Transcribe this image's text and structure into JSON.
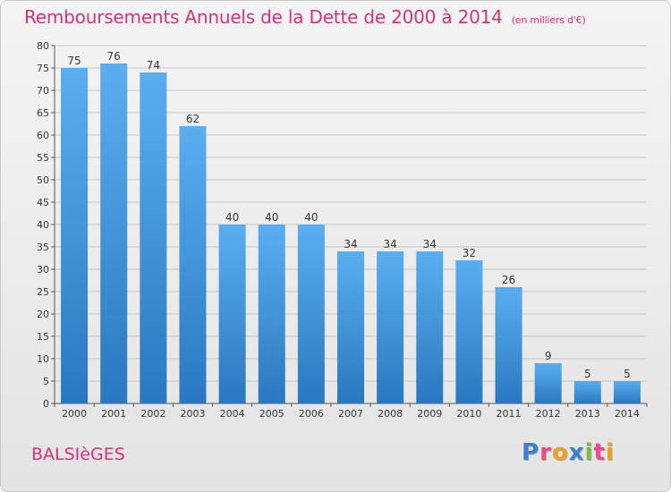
{
  "header": {
    "title": "Remboursements Annuels de la Dette de 2000 à 2014",
    "subtitle": "(en milliers d'€)"
  },
  "footer": {
    "commune": "BALSIèGES",
    "logo_letters": [
      {
        "ch": "P",
        "color": "#3a7fd0"
      },
      {
        "ch": "r",
        "color": "#e84a8a"
      },
      {
        "ch": "o",
        "color": "#f0a020"
      },
      {
        "ch": "x",
        "color": "#3a7fd0"
      },
      {
        "ch": "i",
        "color": "#7cc040"
      },
      {
        "ch": "t",
        "color": "#e84a8a"
      },
      {
        "ch": "i",
        "color": "#f0a020"
      }
    ]
  },
  "chart_data": {
    "type": "bar",
    "title": "Remboursements Annuels de la Dette de 2000 à 2014",
    "subtitle": "(en milliers d'€)",
    "categories": [
      "2000",
      "2001",
      "2002",
      "2003",
      "2004",
      "2005",
      "2006",
      "2007",
      "2008",
      "2009",
      "2010",
      "2011",
      "2012",
      "2013",
      "2014"
    ],
    "values": [
      75,
      76,
      74,
      62,
      40,
      40,
      40,
      34,
      34,
      34,
      32,
      26,
      9,
      5,
      5
    ],
    "ylim": [
      0,
      80
    ],
    "yticks": [
      0,
      5,
      10,
      15,
      20,
      25,
      30,
      35,
      40,
      45,
      50,
      55,
      60,
      65,
      70,
      75,
      80
    ],
    "grid": true,
    "bar_color_top": "#5aaef0",
    "bar_color_bottom": "#2a78c0"
  }
}
